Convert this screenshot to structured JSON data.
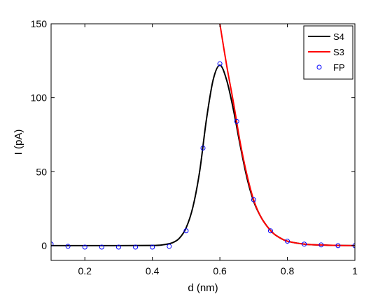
{
  "chart_data": {
    "type": "line",
    "xlabel": "d (nm)",
    "ylabel": "I (pA)",
    "xlim": [
      0.1,
      1.0
    ],
    "ylim": [
      -10,
      150
    ],
    "xticks": [
      0.2,
      0.4,
      0.6,
      0.8,
      1
    ],
    "xtick_labels": [
      "0.2",
      "0.4",
      "0.6",
      "0.8",
      "1"
    ],
    "yticks": [
      0,
      50,
      100,
      150
    ],
    "ytick_labels": [
      "0",
      "50",
      "100",
      "150"
    ],
    "grid": false,
    "legend_position": "top-right",
    "series": [
      {
        "name": "S4",
        "style": "line",
        "color": "#000000",
        "x": [
          0.1,
          0.3,
          0.4,
          0.43,
          0.46,
          0.48,
          0.5,
          0.52,
          0.54,
          0.56,
          0.58,
          0.6,
          0.62,
          0.64,
          0.66,
          0.68,
          0.7,
          0.72,
          0.74,
          0.76,
          0.78,
          0.8,
          0.85,
          0.9,
          0.95,
          1.0
        ],
        "y": [
          0,
          0,
          0.1,
          0.5,
          2,
          5,
          12,
          26,
          50,
          85,
          112,
          122,
          112,
          92,
          68,
          46,
          30,
          20,
          13,
          8,
          5,
          3,
          1,
          0.4,
          0.1,
          0
        ]
      },
      {
        "name": "S3",
        "style": "line",
        "color": "#ff0000",
        "x": [
          0.6,
          0.62,
          0.64,
          0.66,
          0.68,
          0.7,
          0.72,
          0.74,
          0.76,
          0.78,
          0.8,
          0.85,
          0.9,
          0.95,
          1.0
        ],
        "y": [
          150,
          122,
          97,
          70,
          48,
          31,
          20,
          13,
          8,
          5,
          3,
          1,
          0.4,
          0.1,
          0
        ]
      },
      {
        "name": "FP",
        "style": "markers",
        "color": "#0000ff",
        "x": [
          0.1,
          0.15,
          0.2,
          0.25,
          0.3,
          0.35,
          0.4,
          0.45,
          0.5,
          0.55,
          0.6,
          0.65,
          0.7,
          0.75,
          0.8,
          0.85,
          0.9,
          0.95,
          1.0
        ],
        "y": [
          1,
          -0.5,
          -1,
          -1,
          -1,
          -1,
          -1,
          -0.5,
          10,
          66,
          123,
          84,
          31,
          10,
          3,
          1,
          0.5,
          0,
          0
        ]
      }
    ]
  }
}
